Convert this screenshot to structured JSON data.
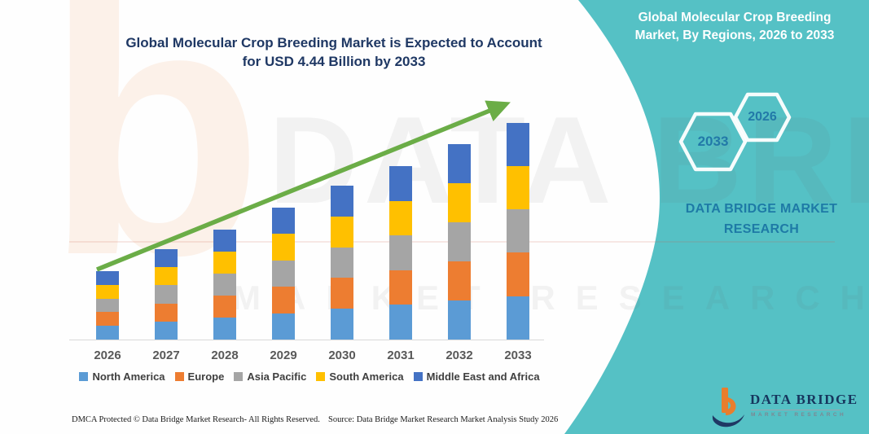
{
  "header": {
    "left_title_line1": "Global Molecular Crop Breeding Market is Expected to Account",
    "left_title_line2": "for USD 4.44 Billion by 2033"
  },
  "right_panel": {
    "title_line1": "Global Molecular Crop Breeding",
    "title_line2": "Market, By Regions, 2026 to 2033",
    "hexagons": [
      {
        "label": "2033"
      },
      {
        "label": "2026"
      }
    ],
    "brand_text": "DATA BRIDGE MARKET RESEARCH",
    "logo": {
      "name": "DATA BRIDGE",
      "subtitle": "MARKET RESEARCH"
    }
  },
  "watermark": {
    "letter": "b",
    "line1": "DATA BRIDGE",
    "line2": "MARKET RESEARCH"
  },
  "footer": {
    "left": "DMCA Protected © Data Bridge Market Research-  All Rights Reserved.",
    "right": "Source: Data Bridge Market Research  Market Analysis Study 2026"
  },
  "colors": {
    "teal": "#55C1C5",
    "navy": "#1F3864",
    "arrow_green": "#6BAD47",
    "hex_blue": "#2279A8",
    "brand_blue": "#1E7AA6",
    "logo_navy": "#16355D",
    "logo_orange": "#E87E2D",
    "axis_label_gray": "#595959",
    "legend_text_gray": "#3F3F3F",
    "baseline_gray": "#D9D9D9"
  },
  "chart_data": {
    "type": "bar",
    "stacked": true,
    "title": "Global Molecular Crop Breeding Market is Expected to Account for USD 4.44 Billion by 2033",
    "units": "USD Billion",
    "categories": [
      "2026",
      "2027",
      "2028",
      "2029",
      "2030",
      "2031",
      "2032",
      "2033"
    ],
    "series": [
      {
        "name": "North America",
        "color": "#5B9BD5",
        "values": [
          0.28,
          0.37,
          0.45,
          0.54,
          0.63,
          0.71,
          0.8,
          0.888
        ]
      },
      {
        "name": "Europe",
        "color": "#ED7D31",
        "values": [
          0.28,
          0.37,
          0.45,
          0.54,
          0.63,
          0.71,
          0.8,
          0.888
        ]
      },
      {
        "name": "Asia Pacific",
        "color": "#A5A5A5",
        "values": [
          0.28,
          0.37,
          0.45,
          0.54,
          0.63,
          0.71,
          0.8,
          0.888
        ]
      },
      {
        "name": "South America",
        "color": "#FFC000",
        "values": [
          0.28,
          0.37,
          0.45,
          0.54,
          0.63,
          0.71,
          0.8,
          0.888
        ]
      },
      {
        "name": "Middle East and Africa",
        "color": "#4472C4",
        "values": [
          0.28,
          0.37,
          0.45,
          0.54,
          0.63,
          0.71,
          0.8,
          0.888
        ]
      }
    ],
    "totals": [
      1.4,
      1.85,
      2.25,
      2.7,
      3.15,
      3.55,
      4.0,
      4.44
    ],
    "xlabel": "",
    "ylabel": "",
    "ylim": [
      0,
      4.9
    ],
    "y_axis_hidden": true,
    "grid": false,
    "legend_position": "bottom",
    "trend_arrow": true
  }
}
